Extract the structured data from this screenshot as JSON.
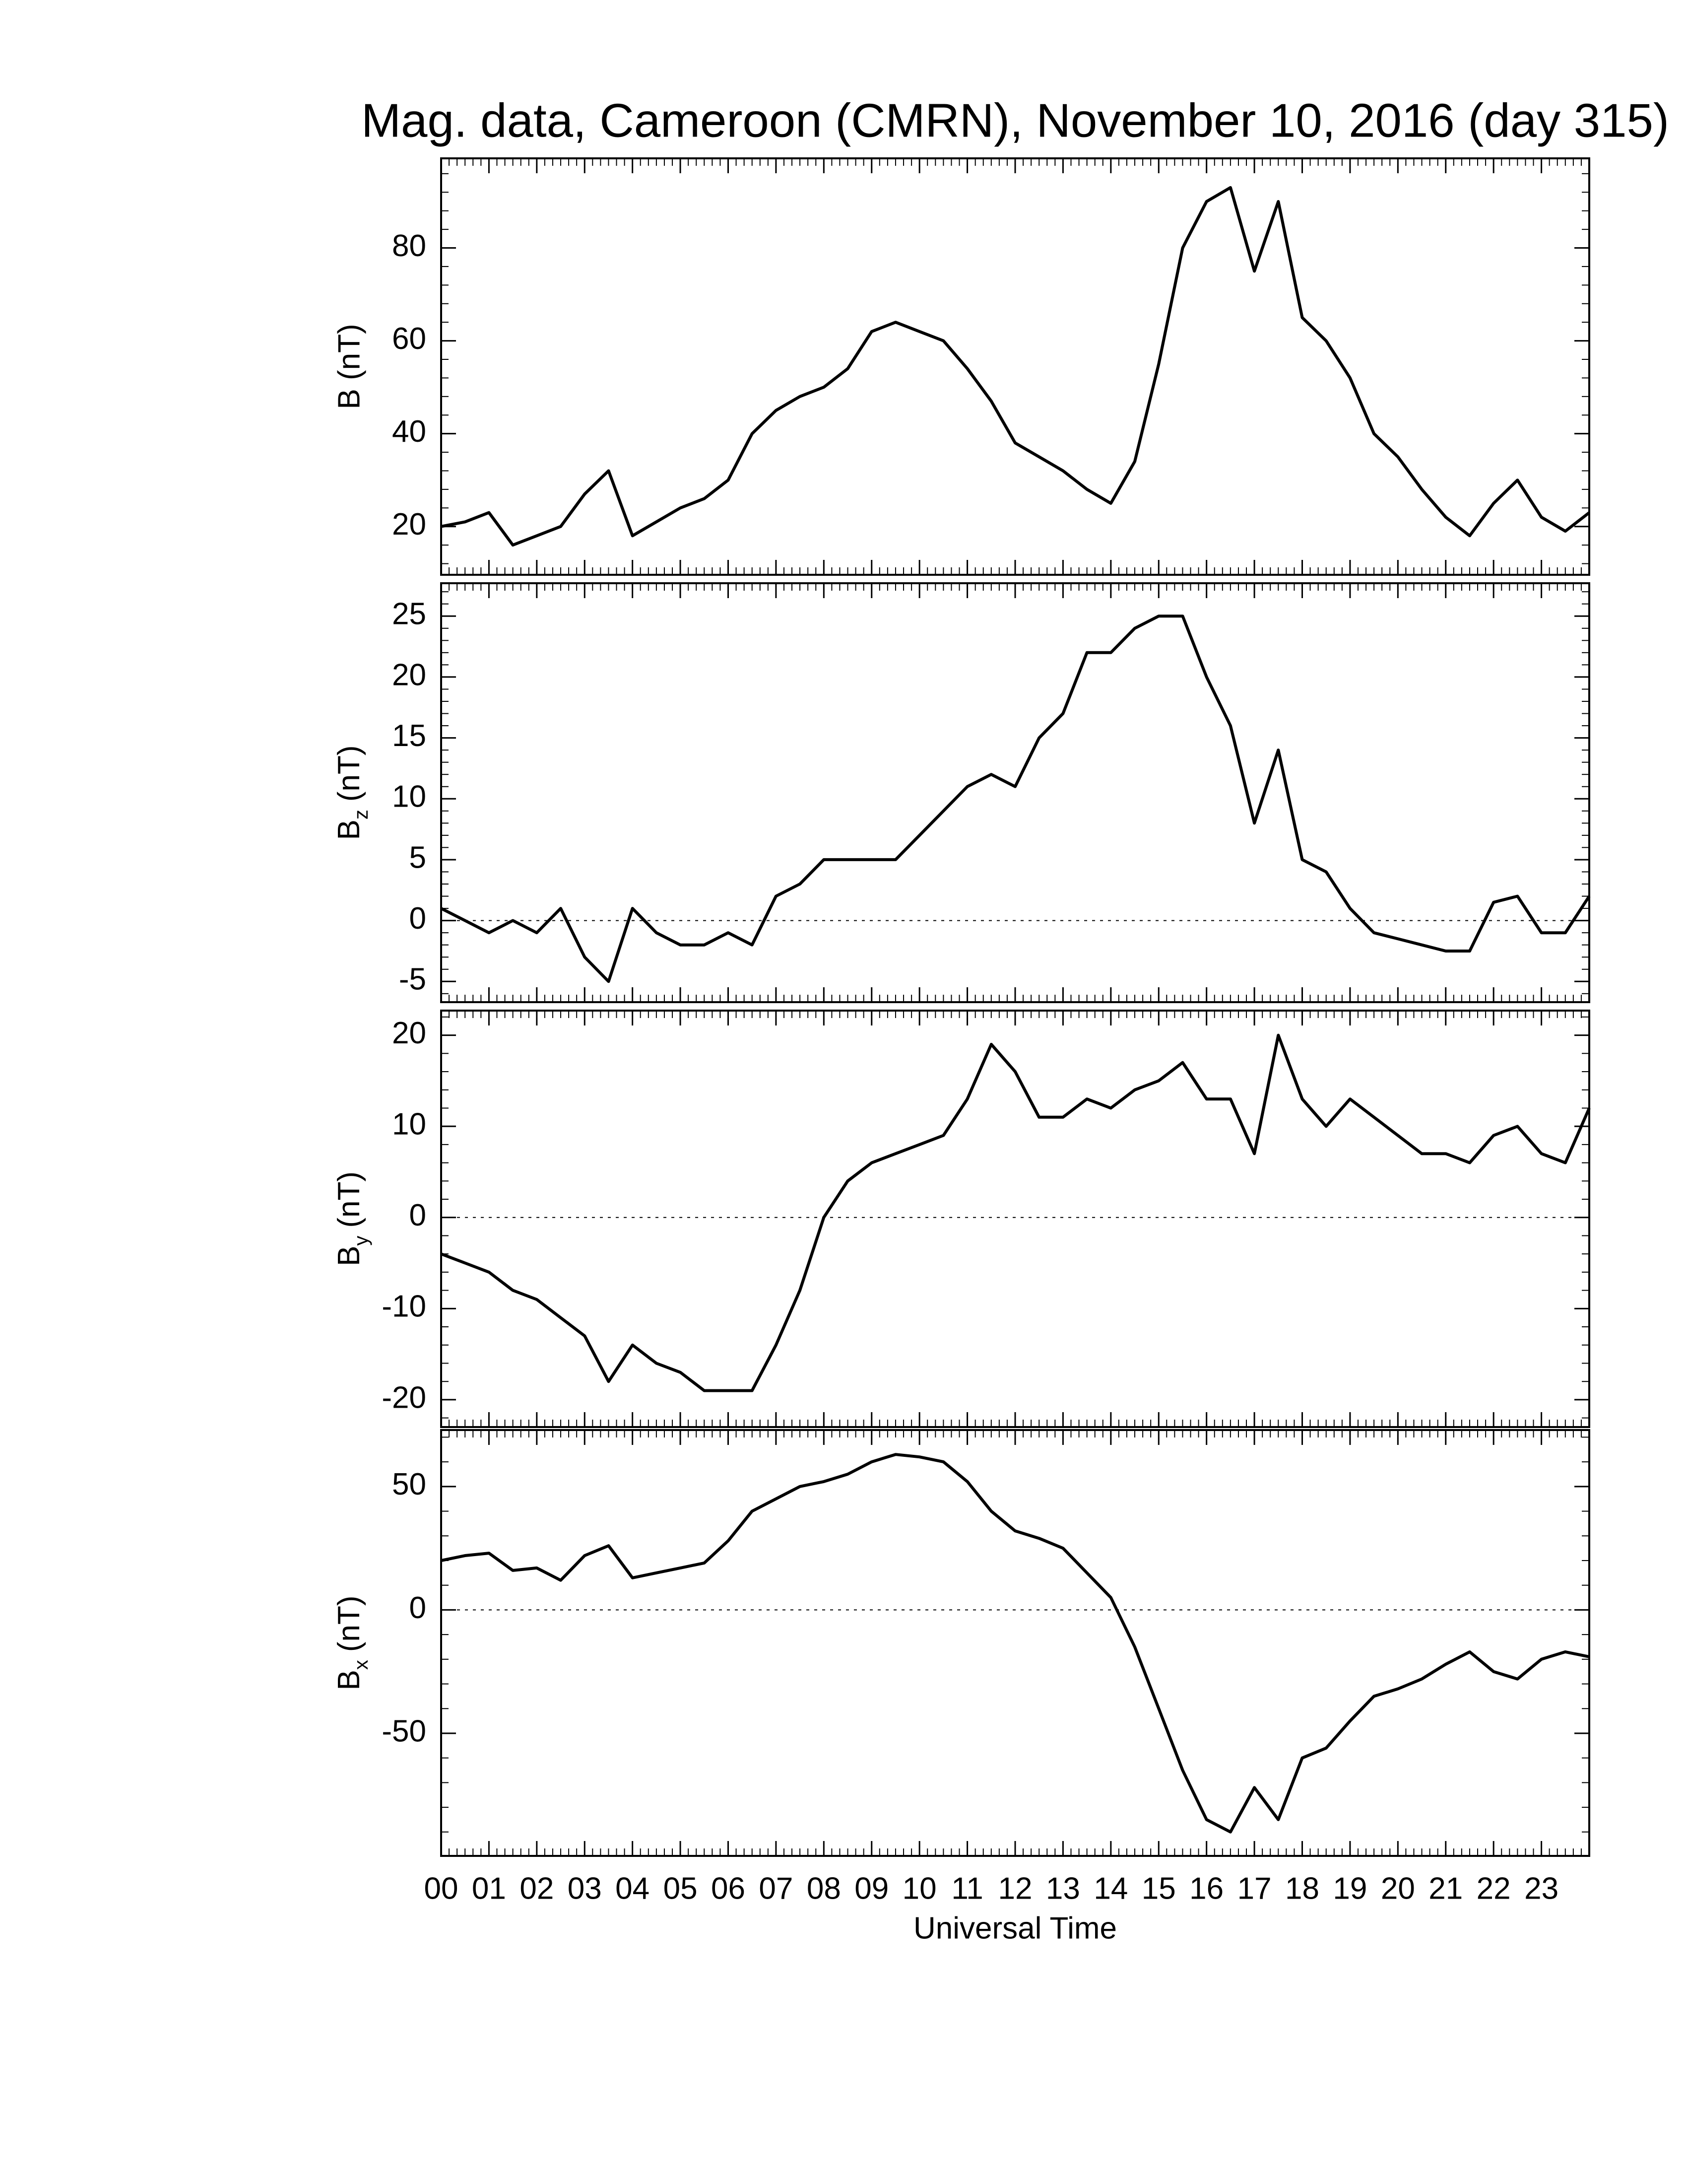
{
  "chart_data": [
    {
      "type": "line",
      "title": "Mag. data, Cameroon (CMRN), November 10, 2016 (day 315)",
      "ylabel": "B (nT)",
      "color": "#000000",
      "x": [
        0,
        0.5,
        1,
        1.5,
        2,
        2.5,
        3,
        3.5,
        4,
        4.5,
        5,
        5.5,
        6,
        6.5,
        7,
        7.5,
        8,
        8.5,
        9,
        9.5,
        10,
        10.5,
        11,
        11.5,
        12,
        12.5,
        13,
        13.5,
        14,
        14.5,
        15,
        15.5,
        16,
        16.5,
        17,
        17.5,
        18,
        18.5,
        19,
        19.5,
        20,
        20.5,
        21,
        21.5,
        22,
        22.5,
        23,
        23.5,
        24
      ],
      "values": [
        20,
        21,
        23,
        16,
        18,
        20,
        27,
        32,
        18,
        21,
        24,
        26,
        30,
        40,
        45,
        48,
        50,
        54,
        62,
        64,
        62,
        60,
        54,
        47,
        38,
        35,
        32,
        28,
        25,
        34,
        55,
        80,
        90,
        93,
        75,
        90,
        65,
        60,
        52,
        40,
        35,
        28,
        22,
        18,
        25,
        30,
        22,
        19,
        23
      ],
      "xlim": [
        0,
        24
      ],
      "ylim": [
        9.6,
        99.3
      ],
      "yticks": [
        20,
        40,
        60,
        80
      ]
    },
    {
      "type": "line",
      "ylabel": {
        "base": "B",
        "sub": "z",
        "rest": "(nT)"
      },
      "color": "#000000",
      "hline": 0,
      "x": [
        0,
        0.5,
        1,
        1.5,
        2,
        2.5,
        3,
        3.5,
        4,
        4.5,
        5,
        5.5,
        6,
        6.5,
        7,
        7.5,
        8,
        8.5,
        9,
        9.5,
        10,
        10.5,
        11,
        11.5,
        12,
        12.5,
        13,
        13.5,
        14,
        14.5,
        15,
        15.5,
        16,
        16.5,
        17,
        17.5,
        18,
        18.5,
        19,
        19.5,
        20,
        20.5,
        21,
        21.5,
        22,
        22.5,
        23,
        23.5,
        24
      ],
      "values": [
        1,
        0,
        -1,
        0,
        -1,
        1,
        -3,
        -5,
        1,
        -1,
        -2,
        -2,
        -1,
        -2,
        2,
        3,
        5,
        5,
        5,
        5,
        7,
        9,
        11,
        12,
        11,
        15,
        17,
        22,
        22,
        24,
        25,
        25,
        20,
        16,
        8,
        14,
        5,
        4,
        1,
        -1,
        -1.5,
        -2,
        -2.5,
        -2.5,
        1.5,
        2,
        -1,
        -1,
        2
      ],
      "xlim": [
        0,
        24
      ],
      "ylim": [
        -6.7,
        27.7
      ],
      "yticks": [
        -5,
        0,
        5,
        10,
        15,
        20,
        25
      ]
    },
    {
      "type": "line",
      "ylabel": {
        "base": "B",
        "sub": "y",
        "rest": "(nT)"
      },
      "color": "#000000",
      "hline": 0,
      "x": [
        0,
        0.5,
        1,
        1.5,
        2,
        2.5,
        3,
        3.5,
        4,
        4.5,
        5,
        5.5,
        6,
        6.5,
        7,
        7.5,
        8,
        8.5,
        9,
        9.5,
        10,
        10.5,
        11,
        11.5,
        12,
        12.5,
        13,
        13.5,
        14,
        14.5,
        15,
        15.5,
        16,
        16.5,
        17,
        17.5,
        18,
        18.5,
        19,
        19.5,
        20,
        20.5,
        21,
        21.5,
        22,
        22.5,
        23,
        23.5,
        24
      ],
      "values": [
        -4,
        -5,
        -6,
        -8,
        -9,
        -11,
        -13,
        -18,
        -14,
        -16,
        -17,
        -19,
        -19,
        -19,
        -14,
        -8,
        0,
        4,
        6,
        7,
        8,
        9,
        13,
        19,
        16,
        11,
        11,
        13,
        12,
        14,
        15,
        17,
        13,
        13,
        7,
        20,
        13,
        10,
        13,
        11,
        9,
        7,
        7,
        6,
        9,
        10,
        7,
        6,
        12
      ],
      "xlim": [
        0,
        24
      ],
      "ylim": [
        -23,
        22.7
      ],
      "yticks": [
        -20,
        -10,
        0,
        10,
        20
      ]
    },
    {
      "type": "line",
      "ylabel": {
        "base": "B",
        "sub": "x",
        "rest": "(nT)"
      },
      "xlabel": "Universal Time",
      "color": "#000000",
      "hline": 0,
      "x": [
        0,
        0.5,
        1,
        1.5,
        2,
        2.5,
        3,
        3.5,
        4,
        4.5,
        5,
        5.5,
        6,
        6.5,
        7,
        7.5,
        8,
        8.5,
        9,
        9.5,
        10,
        10.5,
        11,
        11.5,
        12,
        12.5,
        13,
        13.5,
        14,
        14.5,
        15,
        15.5,
        16,
        16.5,
        17,
        17.5,
        18,
        18.5,
        19,
        19.5,
        20,
        20.5,
        21,
        21.5,
        22,
        22.5,
        23,
        23.5,
        24
      ],
      "values": [
        20,
        22,
        23,
        16,
        17,
        12,
        22,
        26,
        13,
        15,
        17,
        19,
        28,
        40,
        45,
        50,
        52,
        55,
        60,
        63,
        62,
        60,
        52,
        40,
        32,
        29,
        25,
        15,
        5,
        -15,
        -40,
        -65,
        -85,
        -90,
        -72,
        -85,
        -60,
        -56,
        -45,
        -35,
        -32,
        -28,
        -22,
        -17,
        -25,
        -28,
        -20,
        -17,
        -19
      ],
      "xlim": [
        0,
        24
      ],
      "ylim": [
        -99.7,
        72.9
      ],
      "yticks": [
        -50,
        0,
        50
      ],
      "xticks": [
        {
          "value": 0,
          "label": "00"
        },
        {
          "value": 1,
          "label": "01"
        },
        {
          "value": 2,
          "label": "02"
        },
        {
          "value": 3,
          "label": "03"
        },
        {
          "value": 4,
          "label": "04"
        },
        {
          "value": 5,
          "label": "05"
        },
        {
          "value": 6,
          "label": "06"
        },
        {
          "value": 7,
          "label": "07"
        },
        {
          "value": 8,
          "label": "08"
        },
        {
          "value": 9,
          "label": "09"
        },
        {
          "value": 10,
          "label": "10"
        },
        {
          "value": 11,
          "label": "11"
        },
        {
          "value": 12,
          "label": "12"
        },
        {
          "value": 13,
          "label": "13"
        },
        {
          "value": 14,
          "label": "14"
        },
        {
          "value": 15,
          "label": "15"
        },
        {
          "value": 16,
          "label": "16"
        },
        {
          "value": 17,
          "label": "17"
        },
        {
          "value": 18,
          "label": "18"
        },
        {
          "value": 19,
          "label": "19"
        },
        {
          "value": 20,
          "label": "20"
        },
        {
          "value": 21,
          "label": "21"
        },
        {
          "value": 22,
          "label": "22"
        },
        {
          "value": 23,
          "label": "23"
        }
      ]
    }
  ]
}
